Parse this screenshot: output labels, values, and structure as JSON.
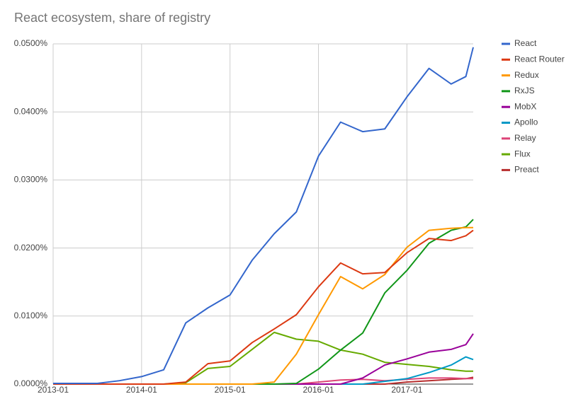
{
  "chart_data": {
    "type": "line",
    "title": "React ecosystem, share of registry",
    "x": [
      "2013-01",
      "2013-04",
      "2013-07",
      "2013-10",
      "2014-01",
      "2014-04",
      "2014-07",
      "2014-10",
      "2015-01",
      "2015-04",
      "2015-07",
      "2015-10",
      "2016-01",
      "2016-04",
      "2016-07",
      "2016-10",
      "2017-01",
      "2017-04",
      "2017-07",
      "2017-09",
      "2017-10"
    ],
    "series": [
      {
        "name": "React",
        "color": "#3366cc",
        "values": [
          0.0001,
          0.0001,
          0.0001,
          0.0005,
          0.0011,
          0.0021,
          0.009,
          0.0112,
          0.0131,
          0.0182,
          0.0221,
          0.0253,
          0.0335,
          0.0385,
          0.0371,
          0.0375,
          0.0422,
          0.0464,
          0.0441,
          0.0452,
          0.0495
        ]
      },
      {
        "name": "React Router",
        "color": "#dc3912",
        "values": [
          0,
          0,
          0,
          0,
          0,
          0,
          0.0003,
          0.003,
          0.0034,
          0.0061,
          0.0081,
          0.0102,
          0.0143,
          0.0178,
          0.0162,
          0.0164,
          0.0193,
          0.0214,
          0.0211,
          0.0218,
          0.0226
        ]
      },
      {
        "name": "Redux",
        "color": "#ff9900",
        "values": [
          0,
          0,
          0,
          0,
          0,
          0,
          0,
          0,
          0,
          0,
          0.0003,
          0.0044,
          0.0102,
          0.0158,
          0.014,
          0.0161,
          0.0201,
          0.0226,
          0.0229,
          0.023,
          0.023
        ]
      },
      {
        "name": "RxJS",
        "color": "#109618",
        "values": [
          0,
          0,
          0,
          0,
          0,
          0,
          0,
          0,
          0,
          0,
          0,
          0.0001,
          0.0022,
          0.005,
          0.0075,
          0.0134,
          0.0167,
          0.0207,
          0.0226,
          0.0231,
          0.0242
        ]
      },
      {
        "name": "MobX",
        "color": "#990099",
        "values": [
          0,
          0,
          0,
          0,
          0,
          0,
          0,
          0,
          0,
          0,
          0,
          0,
          0,
          0,
          0.0009,
          0.0028,
          0.0037,
          0.0047,
          0.0051,
          0.0058,
          0.0074
        ]
      },
      {
        "name": "Apollo",
        "color": "#0099c6",
        "values": [
          0,
          0,
          0,
          0,
          0,
          0,
          0,
          0,
          0,
          0,
          0,
          0,
          0,
          0,
          0,
          0.0004,
          0.0008,
          0.0017,
          0.0028,
          0.004,
          0.0036
        ]
      },
      {
        "name": "Relay",
        "color": "#dd4477",
        "values": [
          0,
          0,
          0,
          0,
          0,
          0,
          0,
          0,
          0,
          0,
          0,
          0,
          0.0003,
          0.0006,
          0.0007,
          0.0005,
          0.0007,
          0.0009,
          0.0009,
          0.0008,
          0.0008
        ]
      },
      {
        "name": "Flux",
        "color": "#66aa00",
        "values": [
          0,
          0,
          0,
          0,
          0,
          0,
          0.0002,
          0.0023,
          0.0026,
          0.0051,
          0.0076,
          0.0066,
          0.0063,
          0.005,
          0.0044,
          0.0032,
          0.0029,
          0.0026,
          0.0021,
          0.0019,
          0.0019
        ]
      },
      {
        "name": "Preact",
        "color": "#b82e2e",
        "values": [
          0,
          0,
          0,
          0,
          0,
          0,
          0,
          0,
          0,
          0,
          0,
          0,
          0,
          0,
          0,
          0,
          0.0003,
          0.0005,
          0.0007,
          0.0008,
          0.001
        ]
      }
    ],
    "xlim": [
      "2013-01",
      "2017-10"
    ],
    "xticks": [
      "2013-01",
      "2014-01",
      "2015-01",
      "2016-01",
      "2017-01"
    ],
    "ylim": [
      0,
      0.05
    ],
    "yticks": [
      {
        "value": 0,
        "label": "0.0000%"
      },
      {
        "value": 0.01,
        "label": "0.0100%"
      },
      {
        "value": 0.02,
        "label": "0.0200%"
      },
      {
        "value": 0.03,
        "label": "0.0300%"
      },
      {
        "value": 0.04,
        "label": "0.0400%"
      },
      {
        "value": 0.05,
        "label": "0.0500%"
      }
    ],
    "grid": true,
    "legend": "right"
  }
}
